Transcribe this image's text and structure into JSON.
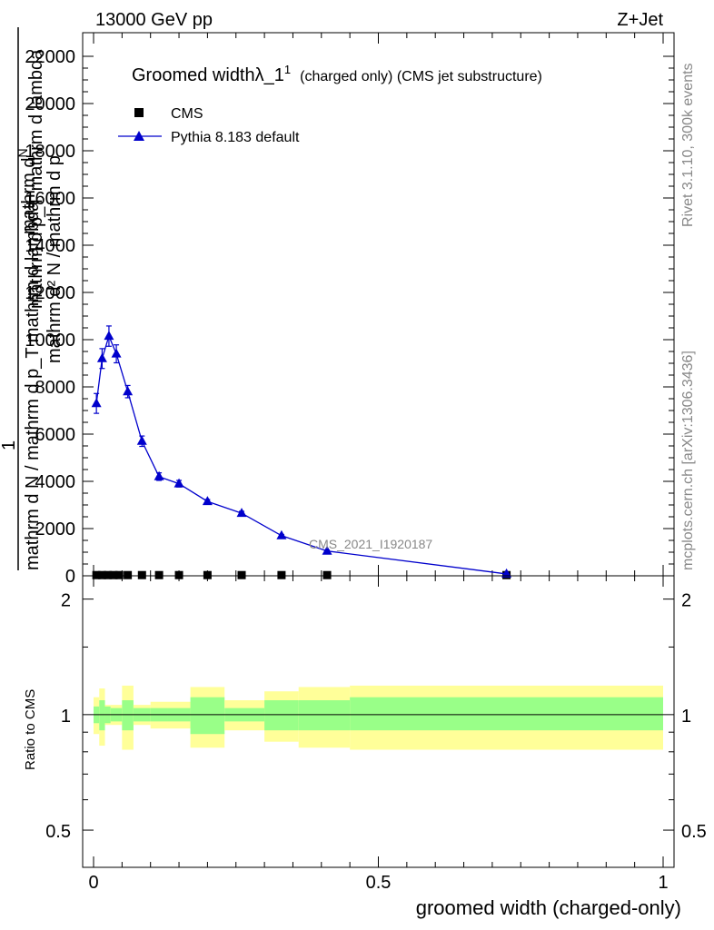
{
  "header": {
    "energy_label": "13000 GeV pp",
    "process_label": "Z+Jet"
  },
  "side_labels": {
    "rivet": "Rivet 3.1.10,  300k events",
    "mcplots": "mcplots.cern.ch [arXiv:1306.3436]"
  },
  "chart_data": [
    {
      "type": "line",
      "panel": "main",
      "title_main": "Groomed width",
      "title_lambda": "λ_1",
      "title_sup": "1",
      "title_suffix": "(charged only) (CMS jet substructure)",
      "ylabel_top": "mathrm d",
      "ylabel_top_N": "N",
      "ylabel_one": "1",
      "ylabel_bottom": "mathrm d N / mathrm d p_T mathrm d lambda",
      "ylabel_overlay": "mathrm d p_T mathrm d lambda",
      "ylabel_overlay2": "mathrm d² N / mathrm d p",
      "watermark": "CMS_2021_I1920187",
      "xlim": [
        -0.02,
        1.02
      ],
      "ylim": [
        0,
        23000
      ],
      "y_ticks": [
        0,
        2000,
        4000,
        6000,
        8000,
        10000,
        12000,
        14000,
        16000,
        18000,
        20000,
        22000
      ],
      "y_tick_labels": [
        "0",
        "2000",
        "4000",
        "6000",
        "8000",
        "10000",
        "12000",
        "14000",
        "16000",
        "18000",
        "20000",
        "22000"
      ],
      "legend": [
        {
          "name": "CMS",
          "marker": "square",
          "color": "#000000"
        },
        {
          "name": "Pythia 8.183 default",
          "marker": "triangle",
          "color": "#0000cc"
        }
      ],
      "series": [
        {
          "name": "CMS",
          "x": [
            0.005,
            0.015,
            0.025,
            0.035,
            0.045,
            0.06,
            0.085,
            0.115,
            0.15,
            0.2,
            0.26,
            0.33,
            0.41,
            0.725
          ],
          "values": [
            30,
            30,
            30,
            30,
            30,
            30,
            30,
            30,
            30,
            30,
            30,
            30,
            30,
            30
          ]
        },
        {
          "name": "Pythia 8.183 default",
          "x": [
            0.005,
            0.015,
            0.027,
            0.04,
            0.06,
            0.085,
            0.115,
            0.15,
            0.2,
            0.26,
            0.33,
            0.41,
            0.725
          ],
          "values": [
            7300,
            9200,
            10150,
            9400,
            7800,
            5700,
            4200,
            3900,
            3150,
            2650,
            1700,
            1050,
            80
          ],
          "errors": [
            420,
            420,
            430,
            380,
            260,
            220,
            160,
            140,
            80,
            80,
            50,
            40,
            20
          ]
        }
      ]
    },
    {
      "type": "area",
      "panel": "ratio",
      "ylabel": "Ratio to CMS",
      "xlabel": "groomed width (charged-only)",
      "ylim": [
        0.4,
        2.3
      ],
      "x_tick_labels": [
        "0",
        "0.5",
        "1"
      ],
      "x_ticks": [
        0,
        0.5,
        1
      ],
      "y_ticks": [
        0.5,
        1,
        2
      ],
      "y_tick_labels": [
        "0.5",
        "1",
        "2"
      ],
      "bins": [
        0,
        0.01,
        0.02,
        0.03,
        0.05,
        0.07,
        0.1,
        0.13,
        0.17,
        0.23,
        0.3,
        0.36,
        0.45,
        1.0
      ],
      "band_green_lo": [
        0.95,
        0.91,
        0.95,
        0.96,
        0.91,
        0.96,
        0.96,
        0.96,
        0.89,
        0.96,
        0.91,
        0.91,
        0.91
      ],
      "band_green_hi": [
        1.05,
        1.09,
        1.05,
        1.04,
        1.09,
        1.04,
        1.04,
        1.04,
        1.11,
        1.04,
        1.09,
        1.09,
        1.11
      ],
      "band_yellow_lo": [
        0.89,
        0.83,
        0.94,
        0.94,
        0.81,
        0.94,
        0.92,
        0.92,
        0.82,
        0.91,
        0.85,
        0.82,
        0.81
      ],
      "band_yellow_hi": [
        1.11,
        1.17,
        1.06,
        1.06,
        1.19,
        1.06,
        1.08,
        1.08,
        1.18,
        1.09,
        1.15,
        1.18,
        1.19
      ]
    }
  ]
}
